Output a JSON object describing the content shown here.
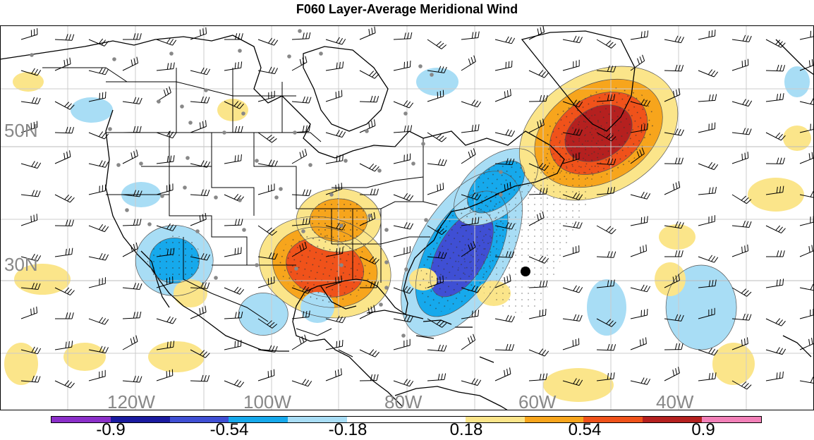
{
  "title": "F060 Layer-Average Meridional Wind",
  "map": {
    "lat_labels": [
      "50N",
      "30N"
    ],
    "lon_labels": [
      "120W",
      "100W",
      "80W",
      "60W",
      "40W"
    ],
    "marker": "filled-circle"
  },
  "legend": {
    "colors": [
      "#8b2fc9",
      "#1a1aa0",
      "#3f4fd4",
      "#16a9ec",
      "#a8ddf5",
      "#ffffff",
      "#ffffff",
      "#fbe58a",
      "#f7a51c",
      "#f0521a",
      "#b5201f",
      "#f280b8"
    ],
    "labels": [
      "-0.9",
      "-0.54",
      "-0.18",
      "0.18",
      "0.54",
      "0.9"
    ]
  },
  "chart_data": {
    "type": "heatmap",
    "variable": "Layer-Average Meridional Wind",
    "levels": [
      -0.9,
      -0.72,
      -0.54,
      -0.36,
      -0.18,
      0,
      0.18,
      0.36,
      0.54,
      0.72,
      0.9
    ],
    "blobs": [
      {
        "region": "southeastern US",
        "lon": -87,
        "lat": 32,
        "value": 0.7
      },
      {
        "region": "Ohio valley",
        "lon": -85,
        "lat": 39,
        "value": 0.45
      },
      {
        "region": "western North Atlantic",
        "lon": -67,
        "lat": 34,
        "value": -0.6
      },
      {
        "region": "off Nova Scotia",
        "lon": -62,
        "lat": 44,
        "value": -0.45
      },
      {
        "region": "central North Atlantic",
        "lon": -47,
        "lat": 52,
        "value": 0.75
      },
      {
        "region": "southwestern US",
        "lon": -109,
        "lat": 33,
        "value": -0.4
      },
      {
        "region": "Gulf of Mexico west",
        "lon": -96,
        "lat": 25,
        "value": -0.25
      },
      {
        "region": "eastern Atlantic",
        "lon": -32,
        "lat": 26,
        "value": -0.3
      }
    ]
  }
}
